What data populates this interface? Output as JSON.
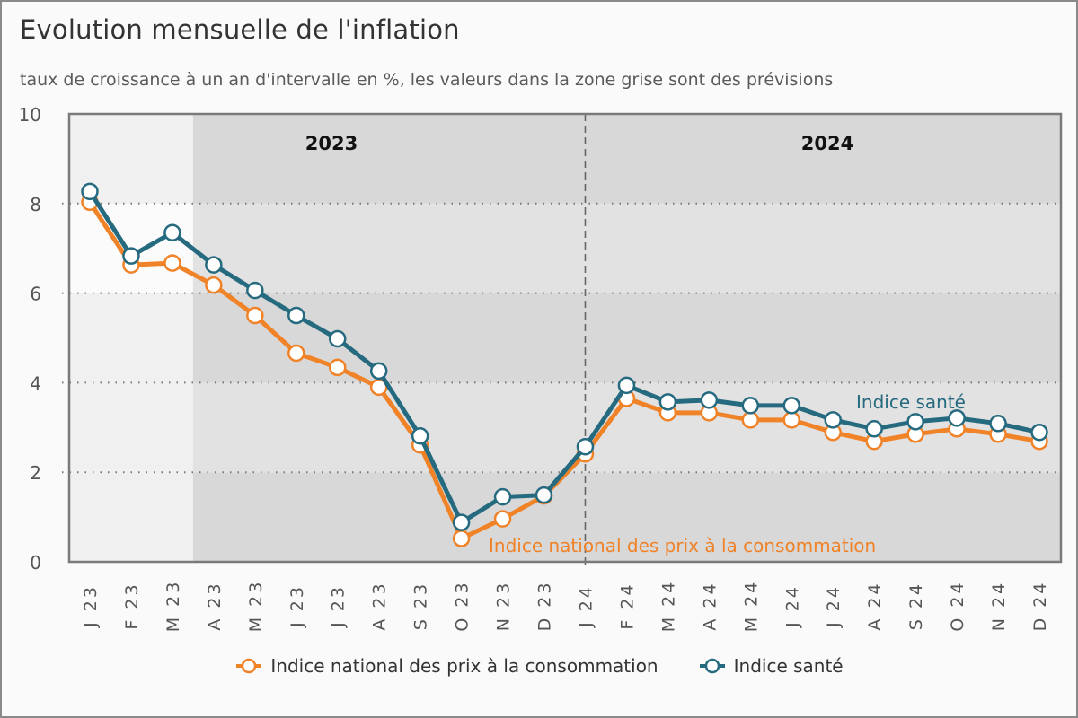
{
  "header": {
    "title": "Evolution mensuelle de l'inflation",
    "subtitle": "taux de croissance à un an d'intervalle en %, les valeurs dans la zone grise sont des prévisions"
  },
  "colors": {
    "inpc": "#f08228",
    "sante": "#266a80",
    "observed_bg": "#f0f0f0",
    "forecast_bg_dark": "#d8d8d8",
    "forecast_bg_light": "#e2e2e2",
    "axis": "#7a7a7a"
  },
  "chart_data": {
    "type": "line",
    "title": "Evolution mensuelle de l'inflation",
    "subtitle": "taux de croissance à un an d'intervalle en %, les valeurs dans la zone grise sont des prévisions",
    "xlabel": "",
    "ylabel": "",
    "ylim": [
      0,
      10
    ],
    "yticks": [
      0,
      2,
      4,
      6,
      8,
      10
    ],
    "grid": "horizontal dotted",
    "legend": "bottom-center",
    "categories": [
      "J 23",
      "F 23",
      "M 23",
      "A 23",
      "M 23",
      "J 23",
      "J 23",
      "A 23",
      "S 23",
      "O 23",
      "N 23",
      "D 23",
      "J 24",
      "F 24",
      "M 24",
      "A 24",
      "M 24",
      "J 24",
      "J 24",
      "A 24",
      "S 24",
      "O 24",
      "N 24",
      "D 24"
    ],
    "year_bands": [
      {
        "label": "2023",
        "from_index": 0,
        "to_index": 11
      },
      {
        "label": "2024",
        "from_index": 12,
        "to_index": 23
      }
    ],
    "forecast_start_index": 3,
    "series": [
      {
        "name": "Indice national des prix à la consommation",
        "color_key": "inpc",
        "inline_label": "Indice national des prix à la consommation",
        "values": [
          8.03,
          6.63,
          6.67,
          6.18,
          5.5,
          4.66,
          4.34,
          3.9,
          2.61,
          0.52,
          0.96,
          1.47,
          2.41,
          3.65,
          3.33,
          3.33,
          3.17,
          3.17,
          2.89,
          2.69,
          2.85,
          2.97,
          2.85,
          2.69
        ]
      },
      {
        "name": "Indice santé",
        "color_key": "sante",
        "inline_label": "Indice santé",
        "values": [
          8.27,
          6.83,
          7.35,
          6.63,
          6.06,
          5.5,
          4.98,
          4.26,
          2.81,
          0.88,
          1.45,
          1.49,
          2.57,
          3.94,
          3.57,
          3.61,
          3.49,
          3.49,
          3.17,
          2.97,
          3.13,
          3.21,
          3.09,
          2.89
        ]
      }
    ]
  },
  "legend": {
    "items": [
      {
        "label": "Indice national des prix à la consommation"
      },
      {
        "label": "Indice santé"
      }
    ]
  }
}
